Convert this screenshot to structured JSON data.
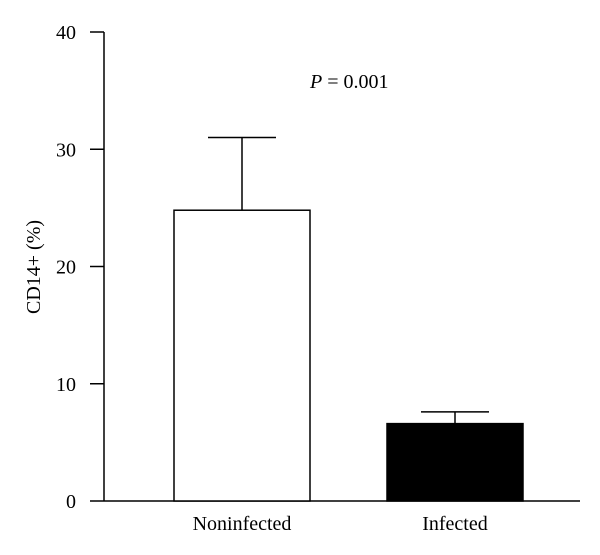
{
  "chart_data": {
    "type": "bar",
    "categories": [
      "Noninfected",
      "Infected"
    ],
    "values": [
      24.8,
      6.6
    ],
    "error_upper": [
      31.0,
      7.6
    ],
    "bar_colors": [
      "#ffffff",
      "#000000"
    ],
    "ylabel": "CD14+ (%)",
    "xlabel": "",
    "ylim": [
      0,
      40
    ],
    "yticks": [
      0,
      10,
      20,
      30,
      40
    ],
    "annotation": {
      "prefix": "P",
      "text": " = 0.001"
    },
    "grid": false
  }
}
